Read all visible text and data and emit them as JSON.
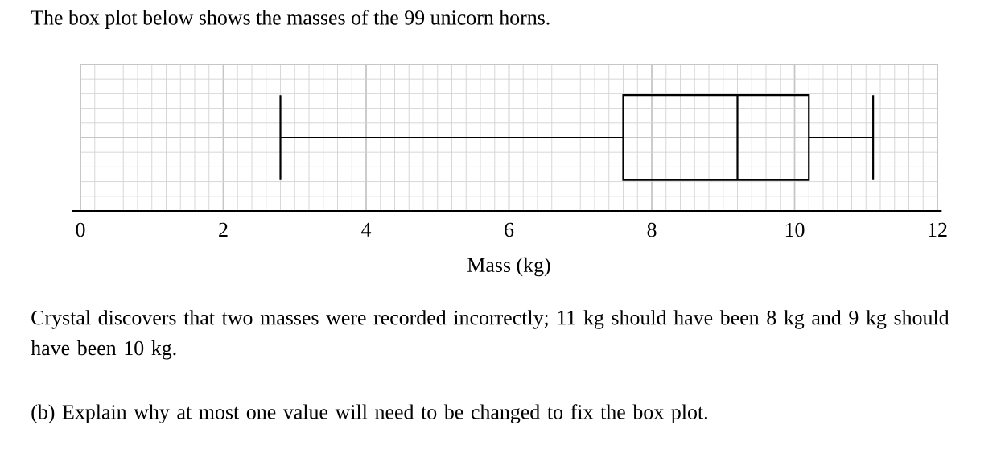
{
  "chart_data": {
    "type": "box",
    "title": "The box plot below shows the masses of the 99 unicorn horns.",
    "xlabel": "Mass (kg)",
    "orientation": "horizontal",
    "color": "#000000",
    "categories": [
      null
    ],
    "boxes": [
      {
        "low": 2.8,
        "q1": 7.6,
        "median": 9.2,
        "q3": 10.2,
        "high": 11.1
      }
    ],
    "xlim": [
      0,
      12
    ],
    "xticks": [
      0,
      2,
      4,
      6,
      8,
      10,
      12
    ],
    "grid": true,
    "tick_labels": "x",
    "annotations": [
      "Crystal discovers that two masses were recorded incorrectly; 11 kg should have been 8 kg and 9 kg should have been 10 kg.",
      "(b) Explain why at most one value will need to be changed to fix the box plot."
    ]
  }
}
